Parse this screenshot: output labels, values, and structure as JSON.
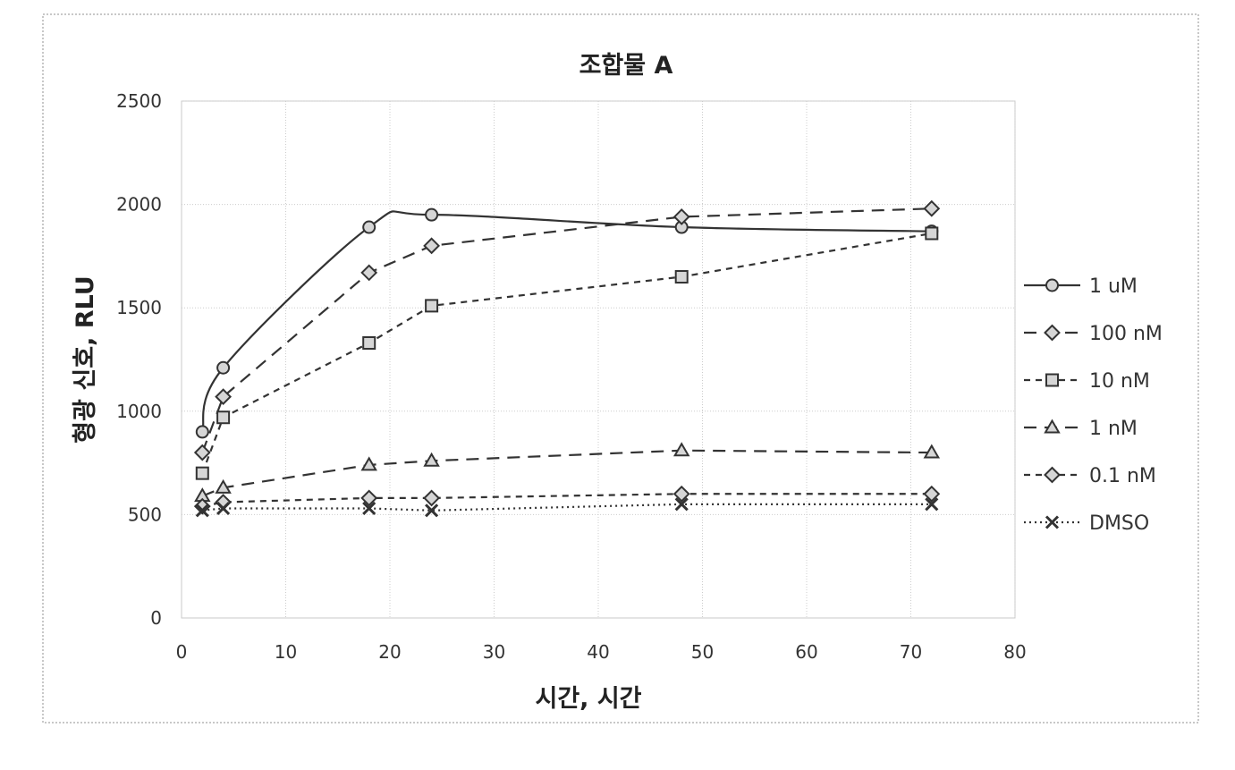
{
  "chart_data": {
    "type": "line",
    "title": "조합물 A",
    "xlabel": "시간, 시간",
    "ylabel": "형광 신호, RLU",
    "xlim": [
      0,
      80
    ],
    "ylim": [
      0,
      2500
    ],
    "xticks": [
      "0",
      "10",
      "20",
      "30",
      "40",
      "50",
      "60",
      "70",
      "80"
    ],
    "yticks": [
      "0",
      "500",
      "1000",
      "1500",
      "2000",
      "2500"
    ],
    "grid": true,
    "legend_position": "right",
    "series": [
      {
        "name": "1 uM",
        "marker": "circle",
        "line": "solid",
        "color": "#333333",
        "smooth": true,
        "x": [
          2,
          4,
          18,
          24,
          48,
          72
        ],
        "y": [
          900,
          1210,
          1890,
          1950,
          1890,
          1870
        ]
      },
      {
        "name": "100 nM",
        "marker": "diamond",
        "line": "long-dash",
        "color": "#333333",
        "x": [
          2,
          4,
          18,
          24,
          48,
          72
        ],
        "y": [
          800,
          1070,
          1670,
          1800,
          1940,
          1980
        ]
      },
      {
        "name": "10 nM",
        "marker": "square",
        "line": "short-dash",
        "color": "#333333",
        "x": [
          2,
          4,
          18,
          24,
          48,
          72
        ],
        "y": [
          700,
          970,
          1330,
          1510,
          1650,
          1860
        ]
      },
      {
        "name": "1 nM",
        "marker": "triangle",
        "line": "long-dash",
        "color": "#333333",
        "x": [
          2,
          4,
          18,
          24,
          48,
          72
        ],
        "y": [
          590,
          630,
          740,
          760,
          810,
          800
        ]
      },
      {
        "name": "0.1 nM",
        "marker": "diamond",
        "line": "short-dash",
        "color": "#333333",
        "x": [
          2,
          4,
          18,
          24,
          48,
          72
        ],
        "y": [
          540,
          560,
          580,
          580,
          600,
          600
        ]
      },
      {
        "name": "DMSO",
        "marker": "x",
        "line": "dotted",
        "color": "#333333",
        "x": [
          2,
          4,
          18,
          24,
          48,
          72
        ],
        "y": [
          520,
          530,
          530,
          520,
          550,
          550
        ]
      }
    ]
  }
}
